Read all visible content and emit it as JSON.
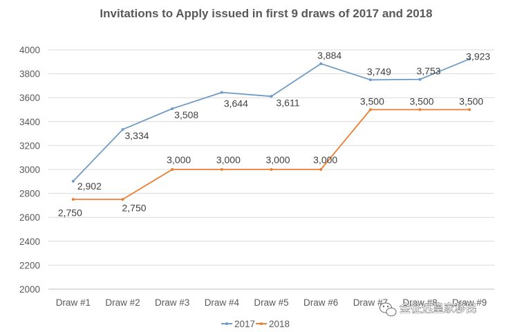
{
  "chart_data": {
    "type": "line",
    "title": "Invitations to Apply issued in first 9 draws of 2017 and 2018",
    "categories": [
      "Draw #1",
      "Draw #2",
      "Draw #3",
      "Draw #4",
      "Draw #5",
      "Draw #6",
      "Draw #7",
      "Draw #8",
      "Draw #9"
    ],
    "series": [
      {
        "name": "2017",
        "color": "#6f9bc4",
        "values": [
          2902,
          3334,
          3508,
          3644,
          3611,
          3884,
          3749,
          3753,
          3923
        ],
        "labels": [
          "2,902",
          "3,334",
          "3,508",
          "3,644",
          "3,611",
          "3,884",
          "3,749",
          "3,753",
          "3,923"
        ]
      },
      {
        "name": "2018",
        "color": "#ed7d31",
        "values": [
          2750,
          2750,
          3000,
          3000,
          3000,
          3000,
          3500,
          3500,
          3500
        ],
        "labels": [
          "2,750",
          "2,750",
          "3,000",
          "3,000",
          "3,000",
          "3,000",
          "3,500",
          "3,500",
          "3,500"
        ]
      }
    ],
    "yticks": [
      2000,
      2200,
      2400,
      2600,
      2800,
      3000,
      3200,
      3400,
      3600,
      3800,
      4000
    ],
    "ylim": [
      2000,
      4000
    ],
    "xlabel": "",
    "ylabel": "",
    "grid": true,
    "legend_position": "bottom"
  },
  "watermark": {
    "text": "金征远皇家移民",
    "icon": "wechat-icon"
  }
}
